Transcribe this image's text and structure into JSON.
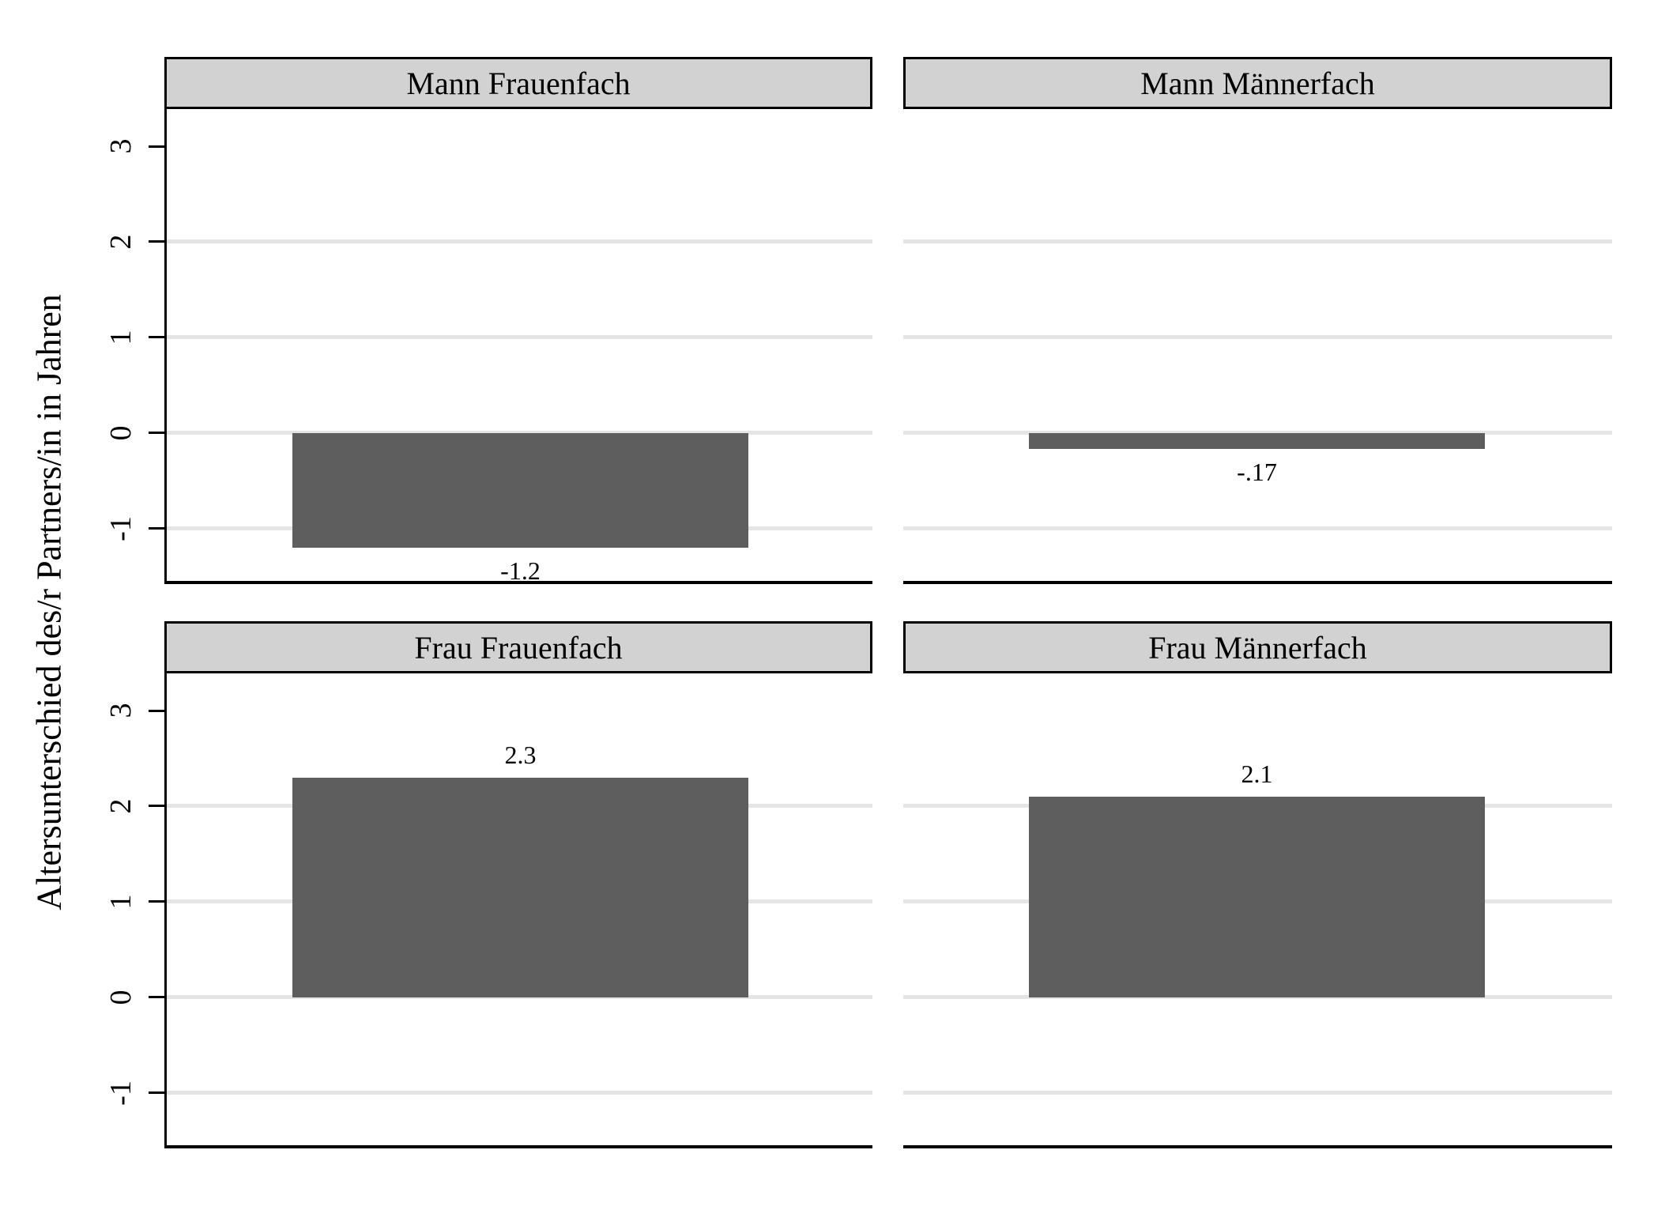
{
  "figure": {
    "background": "#ffffff"
  },
  "chart_data": {
    "type": "bar",
    "layout": "2x2-panel-by-graph",
    "title": "",
    "ylabel": "Altersunterschied des/r Partners/in in Jahren",
    "xlabel": "",
    "ylim": [
      -1.55,
      3.39
    ],
    "yticks": [
      3,
      2,
      1,
      0,
      -1
    ],
    "gridline_values": [
      2,
      1,
      0,
      -1
    ],
    "grid": "horizontal-light",
    "legend": "none",
    "panels": [
      {
        "id": "tl",
        "title": "Mann Frauenfach",
        "value": -1.2,
        "label": "-1.2"
      },
      {
        "id": "tr",
        "title": "Mann Männerfach",
        "value": -0.17,
        "label": "-.17"
      },
      {
        "id": "bl",
        "title": "Frau Frauenfach",
        "value": 2.3,
        "label": "2.3"
      },
      {
        "id": "br",
        "title": "Frau Männerfach",
        "value": 2.1,
        "label": "2.1"
      }
    ],
    "colors": {
      "bar": "#5e5e5e",
      "header_fill": "#d2d2d2",
      "header_border": "#000000",
      "gridline": "#e5e5e5",
      "axis": "#000000",
      "text": "#000000",
      "background": "#ffffff"
    }
  }
}
